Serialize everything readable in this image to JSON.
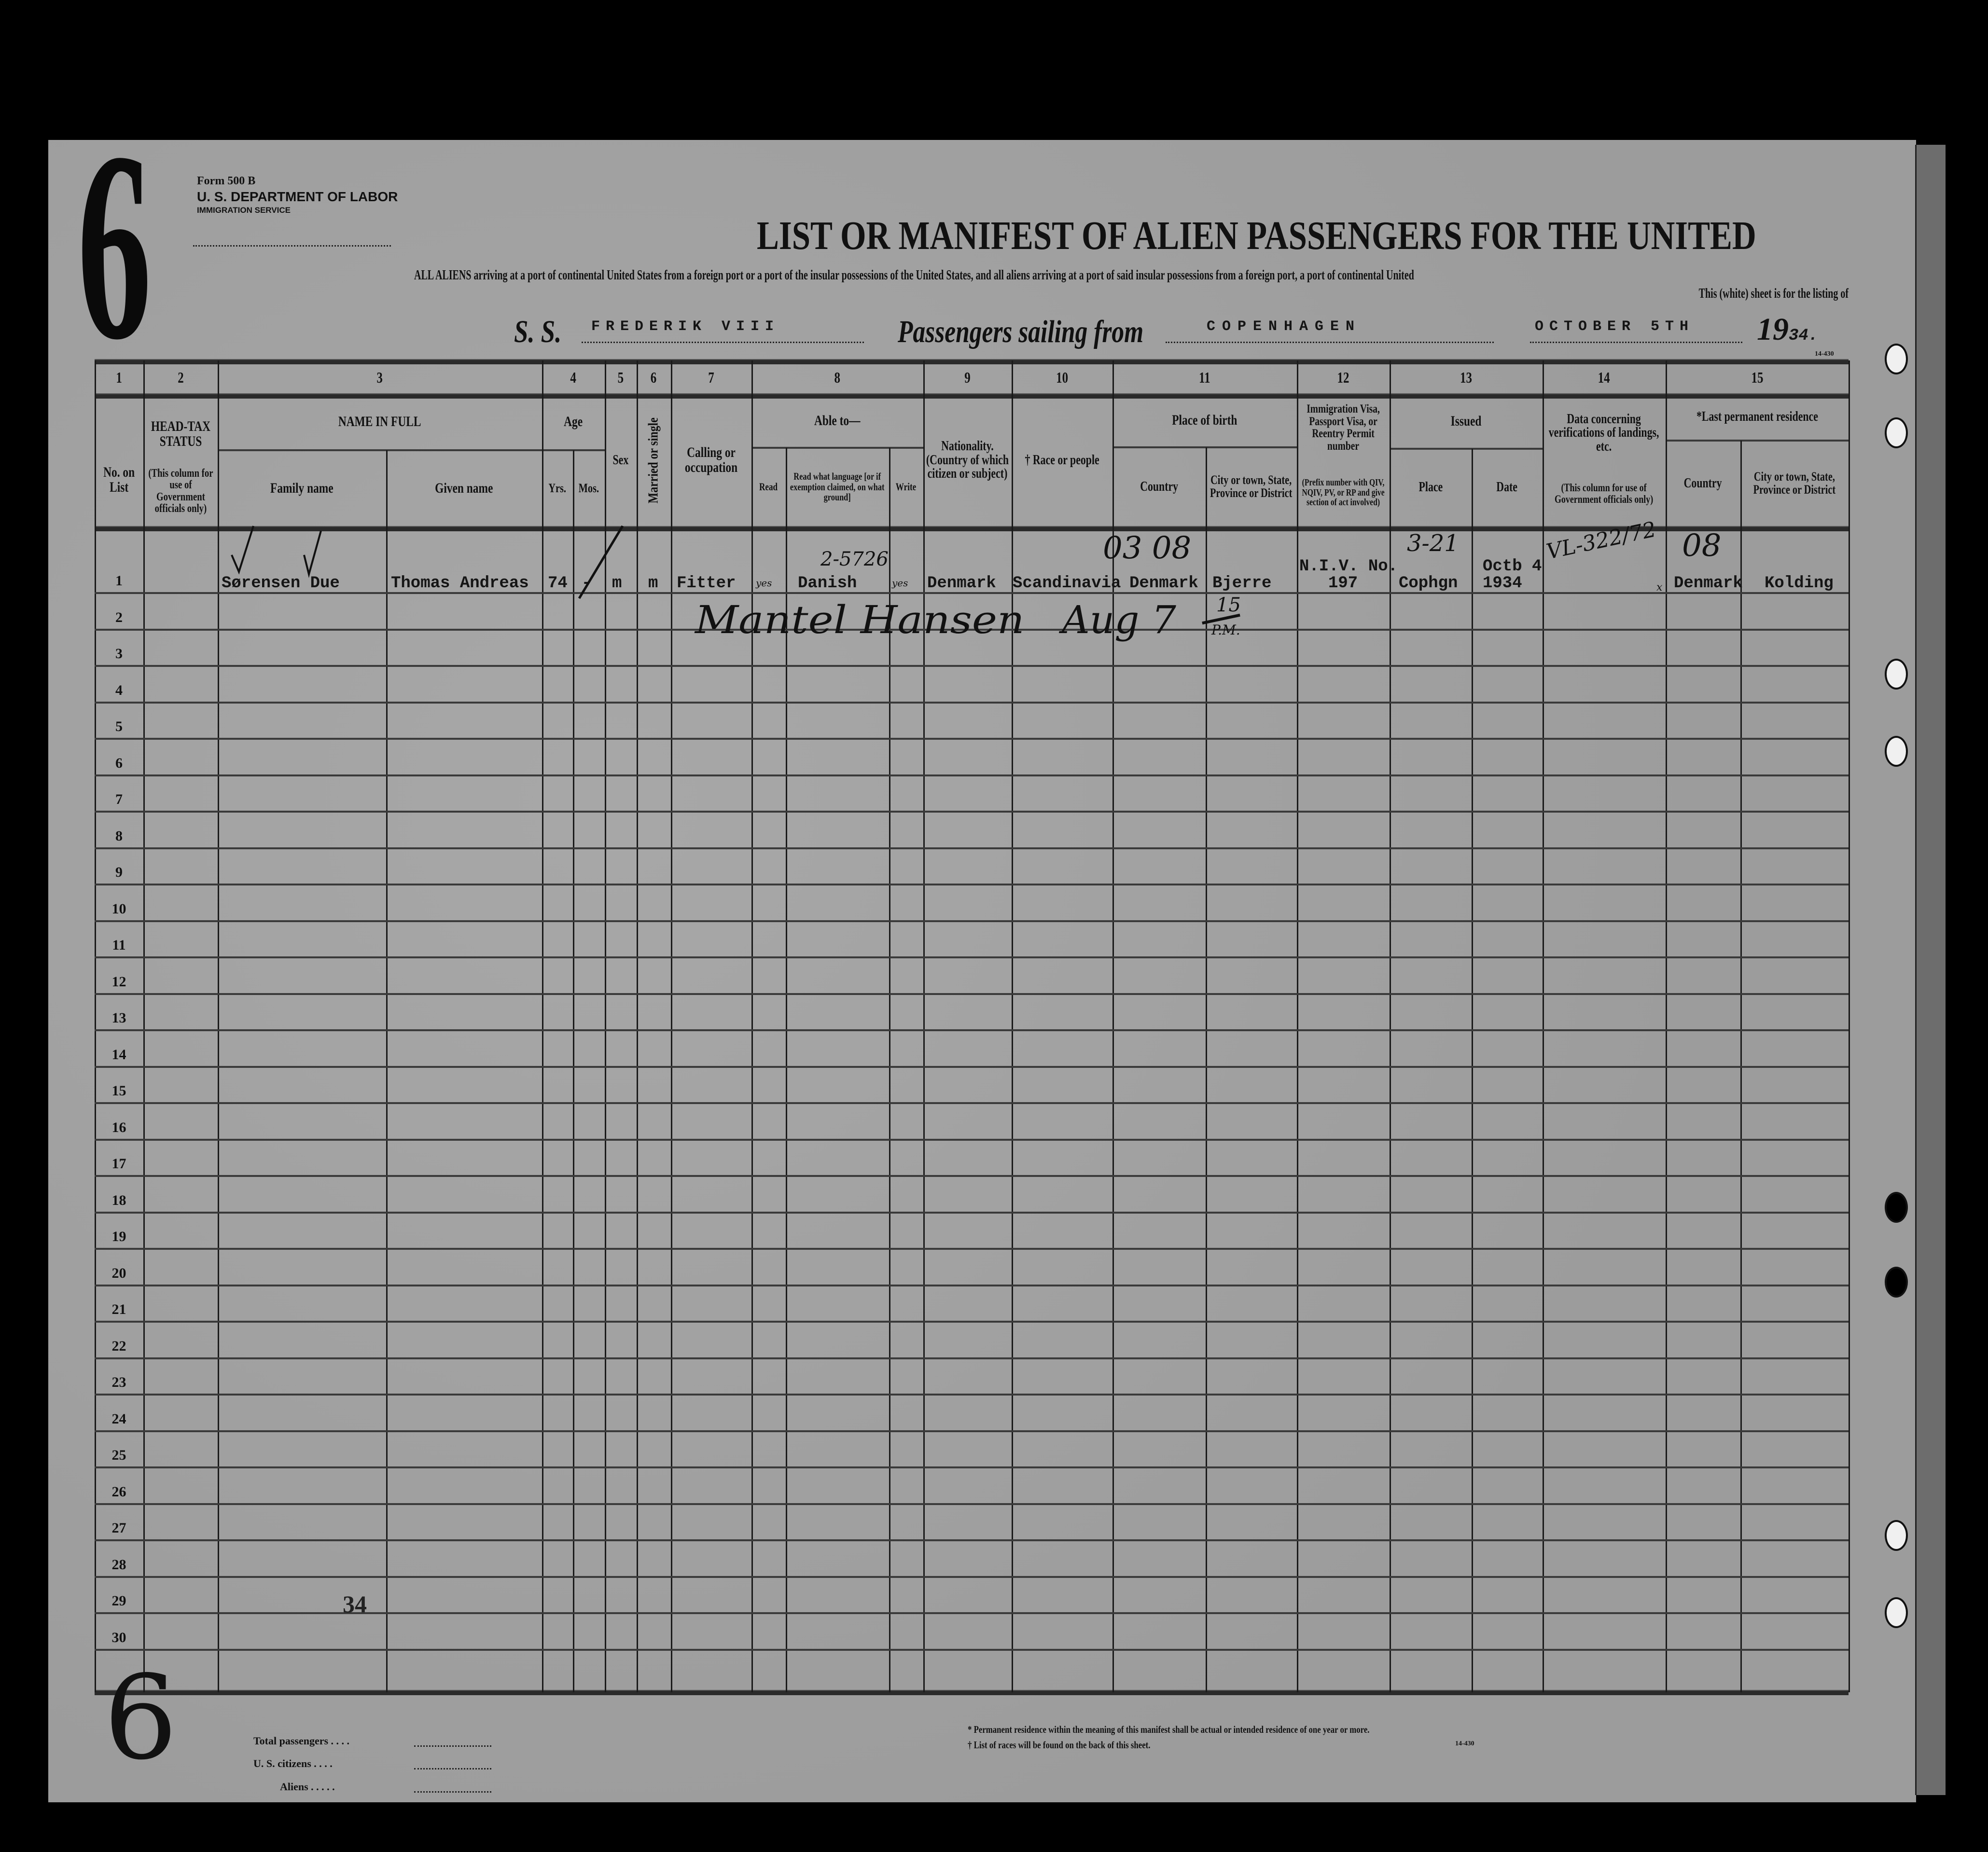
{
  "form": {
    "big_number": "6",
    "form_number": "Form 500 B",
    "department": "U. S. DEPARTMENT OF LABOR",
    "service": "IMMIGRATION SERVICE",
    "top_right_code": "14-430"
  },
  "title": "LIST OR MANIFEST OF ALIEN PASSENGERS FOR THE UNITED",
  "subtitle_line1": "ALL ALIENS arriving at a port of continental United States from a foreign port or a port of the insular possessions of the United States, and all aliens arriving at a port of said insular possessions from a foreign port, a port of continental United",
  "subtitle_line2": "This (white) sheet is for the listing of",
  "voyage": {
    "ss_label": "S. S.",
    "ship": "FREDERIK VIII",
    "sailing_label": "Passengers sailing from",
    "port": "COPENHAGEN",
    "date": "OCTOBER 5TH",
    "year_prefix": "19",
    "year_suffix": "34."
  },
  "columns": {
    "numbers": [
      "1",
      "2",
      "3",
      "4",
      "5",
      "6",
      "7",
      "8",
      "9",
      "10",
      "11",
      "12",
      "13",
      "14",
      "15"
    ],
    "no_on_list": "No. on List",
    "head_tax": "HEAD-TAX STATUS",
    "head_tax_note": "(This column for use of Government officials only)",
    "name_in_full": "NAME IN FULL",
    "family_name": "Family name",
    "given_name": "Given name",
    "age": "Age",
    "yrs": "Yrs.",
    "mos": "Mos.",
    "sex": "Sex",
    "married": "Married or single",
    "calling": "Calling or occupation",
    "able_to": "Able to—",
    "read": "Read",
    "read_language": "Read what language [or if exemption claimed, on what ground]",
    "write": "Write",
    "nationality": "Nationality. (Country of which citizen or subject)",
    "race": "† Race or people",
    "place_of_birth": "Place of birth",
    "country": "Country",
    "city": "City or town, State, Province or District",
    "visa": "Immigration Visa, Passport Visa, or Reentry Permit number",
    "visa_note": "(Prefix number with QIV, NQIV, PV, or RP and give section of act involved)",
    "issued": "Issued",
    "place": "Place",
    "date": "Date",
    "verification": "Data concerning verifications of landings, etc.",
    "verification_note": "(This column for use of Government officials only)",
    "last_residence": "*Last permanent residence",
    "res_country": "Country",
    "res_city": "City or town, State, Province or District"
  },
  "row_numbers": [
    "1",
    "2",
    "3",
    "4",
    "5",
    "6",
    "7",
    "8",
    "9",
    "10",
    "11",
    "12",
    "13",
    "14",
    "15",
    "16",
    "17",
    "18",
    "19",
    "20",
    "21",
    "22",
    "23",
    "24",
    "25",
    "26",
    "27",
    "28",
    "29",
    "30"
  ],
  "passenger": {
    "family_name": "Sørensen Due",
    "given_name": "Thomas Andreas",
    "age_yrs": "74",
    "age_mos": "-",
    "sex": "m",
    "marital": "m",
    "occupation": "Fitter",
    "read": "yes",
    "language": "Danish",
    "write": "yes",
    "nationality": "Denmark",
    "race": "Scandinavia",
    "birth_country": "Denmark",
    "birth_city": "Bjerre",
    "visa_line1": "N.I.V. No.",
    "visa_line2": "197",
    "issued_place": "Cophgn",
    "issued_date_line1": "Octb 4",
    "issued_date_line2": "1934",
    "res_country": "Denmark",
    "res_city": "Kolding"
  },
  "annotations": {
    "language_code": "2-5726",
    "birth_codes": "03  08",
    "issued_code": "3-21",
    "verification": "VL-322/72",
    "residence_code": "08",
    "verification_mark": "x",
    "signature": "Mantel Hansen",
    "signature_date": "Aug 7",
    "signature_time": "15",
    "signature_pm": "P.M.",
    "stamp_count": "34",
    "margin_number": "6"
  },
  "footer": {
    "total_passengers": "Total passengers . . . .",
    "us_citizens": "U. S. citizens . . . .",
    "aliens": "Aliens . . . . .",
    "note1": "* Permanent residence within the meaning of this manifest shall be actual or intended residence of one year or more.",
    "note2": "† List of races will be found on the back of this sheet.",
    "code": "14-430"
  }
}
